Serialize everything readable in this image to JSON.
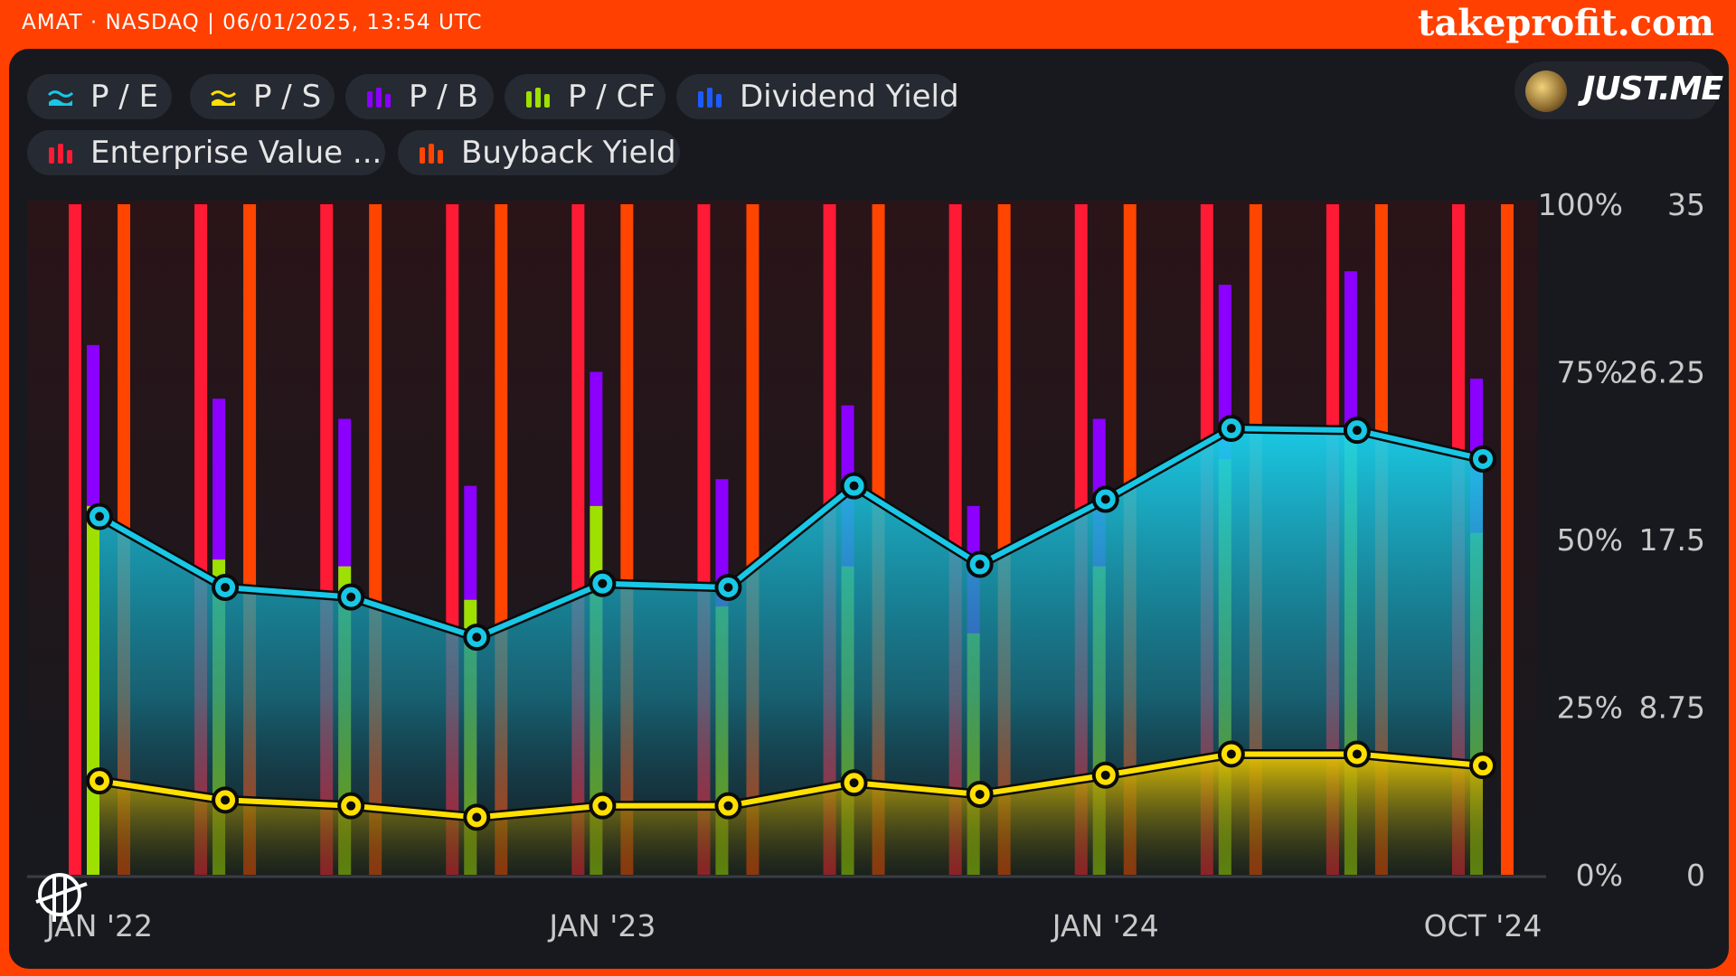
{
  "header": {
    "ticker_line": "AMAT · NASDAQ | 06/01/2025, 13:54 UTC",
    "brand": "takeprofit.com"
  },
  "user": {
    "name": "JUST.ME"
  },
  "legend": [
    {
      "label": "P / E",
      "icon": "area-icon",
      "color": "#18c8e6"
    },
    {
      "label": "P / S",
      "icon": "area-icon",
      "color": "#ffe000"
    },
    {
      "label": "P / B",
      "icon": "bar-icon",
      "color": "#8b00ff"
    },
    {
      "label": "P / CF",
      "icon": "bar-icon",
      "color": "#9ee000"
    },
    {
      "label": "Dividend Yield",
      "icon": "bar-icon",
      "color": "#1e5bff"
    },
    {
      "label": "Enterprise Value ...",
      "icon": "bar-icon",
      "color": "#ff1a35"
    },
    {
      "label": "Buyback Yield",
      "icon": "bar-icon",
      "color": "#ff4500"
    }
  ],
  "chart_data": {
    "type": "bar",
    "x_ticks": [
      "JAN '22",
      "JAN '23",
      "JAN '24",
      "OCT '24"
    ],
    "y_left_ticks": [
      "100%",
      "75%",
      "50%",
      "25%",
      "0%"
    ],
    "y_right_ticks": [
      "35",
      "26.25",
      "17.5",
      "8.75",
      "0"
    ],
    "y_left_range": [
      0,
      100
    ],
    "y_right_range": [
      0,
      35
    ],
    "categories": [
      "Jan 2022",
      "Apr 2022",
      "Jul 2022",
      "Oct 2022",
      "Jan 2023",
      "Apr 2023",
      "Jul 2023",
      "Oct 2023",
      "Jan 2024",
      "Apr 2024",
      "Jul 2024",
      "Oct 2024"
    ],
    "series": [
      {
        "name": "P / E",
        "kind": "area-line",
        "axis": "right",
        "color": "#18c8e6",
        "values": [
          18.7,
          15.0,
          14.5,
          12.4,
          15.2,
          15.0,
          20.3,
          16.2,
          19.6,
          23.3,
          23.2,
          21.7
        ]
      },
      {
        "name": "P / S",
        "kind": "area-line",
        "axis": "right",
        "color": "#ffe000",
        "values": [
          4.9,
          3.9,
          3.6,
          3.0,
          3.6,
          3.6,
          4.8,
          4.2,
          5.2,
          6.3,
          6.3,
          5.7
        ]
      },
      {
        "name": "P / B",
        "kind": "bar",
        "axis": "left",
        "color": "#8b00ff",
        "values": [
          79,
          71,
          68,
          58,
          75,
          59,
          70,
          55,
          68,
          88,
          90,
          74
        ]
      },
      {
        "name": "P / CF",
        "kind": "bar",
        "axis": "left",
        "color": "#9ee000",
        "values": [
          55,
          47,
          46,
          41,
          55,
          40,
          46,
          36,
          46,
          62,
          67,
          51
        ]
      },
      {
        "name": "Dividend Yield",
        "kind": "bar",
        "axis": "left",
        "color": "#1e5bff",
        "values": [
          0,
          0,
          0,
          0,
          0,
          0,
          0,
          0,
          0,
          0,
          0,
          0
        ]
      },
      {
        "name": "Enterprise Value ...",
        "kind": "bar",
        "axis": "left",
        "color": "#ff1a35",
        "values": [
          100,
          100,
          100,
          100,
          100,
          100,
          100,
          100,
          100,
          100,
          100,
          100
        ]
      },
      {
        "name": "Buyback Yield",
        "kind": "bar",
        "axis": "left",
        "color": "#ff4500",
        "values": [
          100,
          100,
          100,
          100,
          100,
          100,
          100,
          100,
          100,
          100,
          100,
          100
        ]
      }
    ],
    "grid": false,
    "legend_position": "top-left"
  }
}
